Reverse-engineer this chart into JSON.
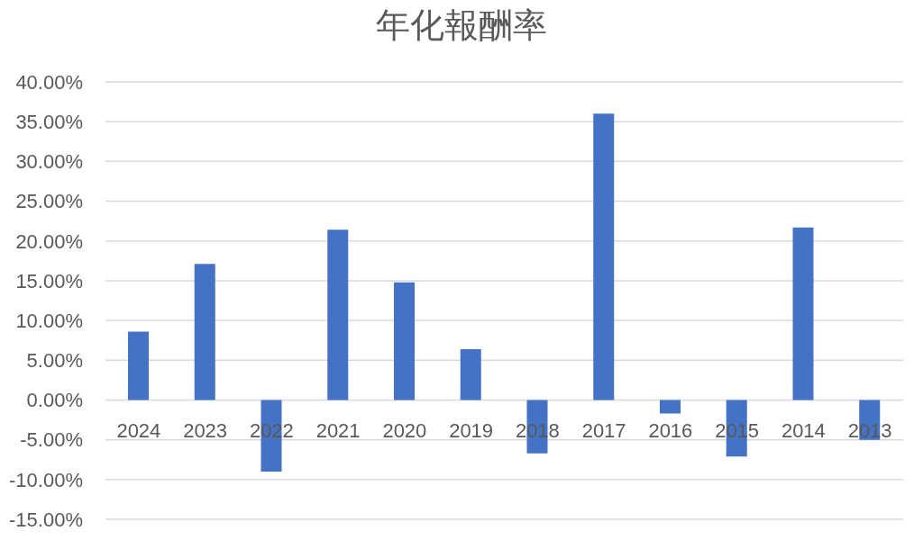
{
  "chart_data": {
    "type": "bar",
    "title": "年化報酬率",
    "categories": [
      "2024",
      "2023",
      "2022",
      "2021",
      "2020",
      "2019",
      "2018",
      "2017",
      "2016",
      "2015",
      "2014",
      "2013"
    ],
    "values": [
      8.6,
      17.1,
      -9.0,
      21.4,
      14.8,
      6.4,
      -6.7,
      36.0,
      -1.7,
      -7.1,
      21.7,
      -5.0
    ],
    "color": "#4472c4",
    "ylim": [
      -15,
      40
    ],
    "yticks": [
      {
        "value": -15,
        "label": "-15.00%"
      },
      {
        "value": -10,
        "label": "-10.00%"
      },
      {
        "value": -5,
        "label": "-5.00%"
      },
      {
        "value": 0,
        "label": "0.00%"
      },
      {
        "value": 5,
        "label": "5.00%"
      },
      {
        "value": 10,
        "label": "10.00%"
      },
      {
        "value": 15,
        "label": "15.00%"
      },
      {
        "value": 20,
        "label": "20.00%"
      },
      {
        "value": 25,
        "label": "25.00%"
      },
      {
        "value": 30,
        "label": "30.00%"
      },
      {
        "value": 35,
        "label": "35.00%"
      },
      {
        "value": 40,
        "label": "40.00%"
      }
    ],
    "grid": "y"
  }
}
